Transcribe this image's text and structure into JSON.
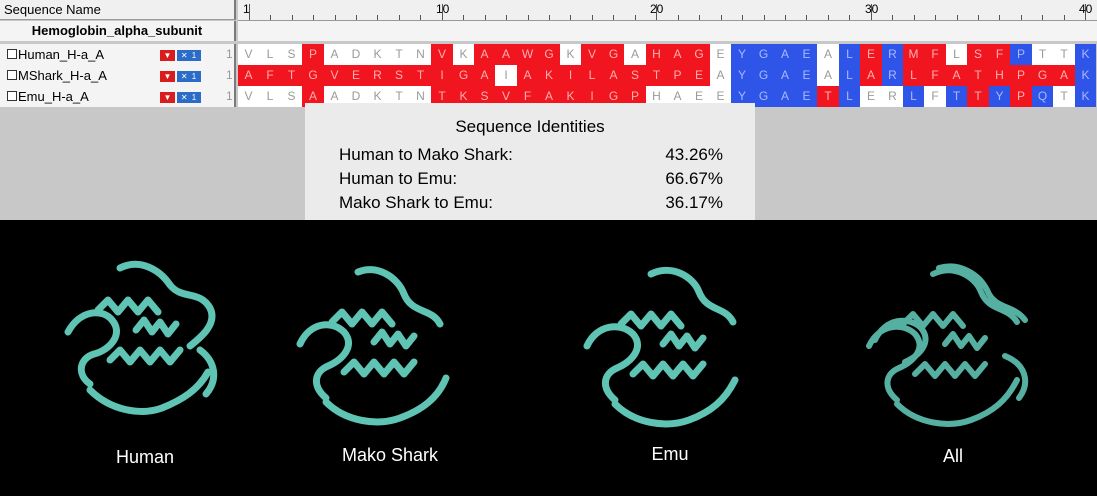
{
  "header": {
    "sequence_name_label": "Sequence Name"
  },
  "ruler": {
    "ticks": [
      "1",
      "10",
      "20",
      "30",
      "40"
    ]
  },
  "group": {
    "name": "Hemoglobin_alpha_subunit"
  },
  "rows": [
    {
      "name": "Human_H-a_A",
      "start": "1",
      "tool1": "▼",
      "tool2": "✕ 1",
      "residues": "VLSPADKTNVKAAWGKVGAHAGEYGAEALERMFLSFPTTK",
      "colors": "wwwrwwwwwrwrrrrwrrwrrrwbbbbwbrbrrwrrbwwb"
    },
    {
      "name": "MShark_H-a_A",
      "start": "1",
      "tool1": "▼",
      "tool2": "✕ 1",
      "residues": "AFTGVERSTIGAIAKILASTPEAYGAEALARLFATHPGAK",
      "colors": "rrrrrrrrrrrrwrrrrrrrrrwbbbbwbrbrrrrrrrrb"
    },
    {
      "name": "Emu_H-a_A",
      "start": "1",
      "tool1": "▼",
      "tool2": "✕ 1",
      "residues": "VLSAADKTNTKSVFAKIGPHAEEYGAETLERLFTTYPQTK",
      "colors": "wwwrwwwwwrrrrrrrrrrwwwwbbbbrbwwbwbrbrbwb"
    }
  ],
  "identities": {
    "title": "Sequence Identities",
    "rows": [
      {
        "label": "Human to Mako Shark:",
        "value": "43.26%"
      },
      {
        "label": "Human to Emu:",
        "value": "66.67%"
      },
      {
        "label": "Mako Shark to Emu:",
        "value": "36.17%"
      }
    ]
  },
  "structures": [
    {
      "label": "Human"
    },
    {
      "label": "Mako Shark"
    },
    {
      "label": "Emu"
    },
    {
      "label": "All"
    }
  ],
  "colors": {
    "identical": "#2f55e8",
    "mismatch": "#f0151e",
    "neutral": "#ffffff",
    "ribbon": "#5fc4b4"
  }
}
